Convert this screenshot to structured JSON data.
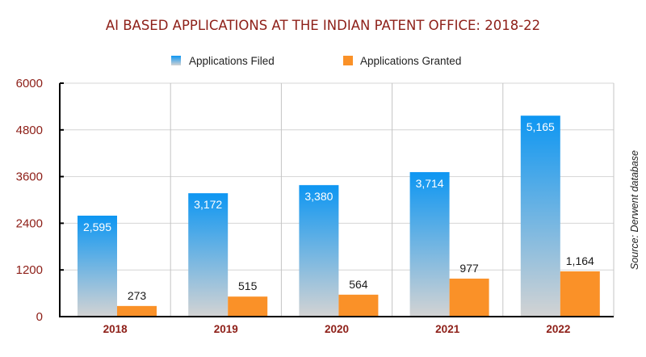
{
  "chart_data": {
    "type": "bar",
    "title": "AI BASED APPLICATIONS AT THE INDIAN PATENT OFFICE: 2018-22",
    "xlabel": "",
    "ylabel": "",
    "categories": [
      "2018",
      "2019",
      "2020",
      "2021",
      "2022"
    ],
    "series": [
      {
        "name": "Applications Filed",
        "values": [
          2595,
          3172,
          3380,
          3714,
          5165
        ],
        "labels": [
          "2,595",
          "3,172",
          "3,380",
          "3,714",
          "5,165"
        ],
        "color_top": "#0d96f2",
        "color_bottom": "#d3d3d3"
      },
      {
        "name": "Applications Granted",
        "values": [
          273,
          515,
          564,
          977,
          1164
        ],
        "labels": [
          "273",
          "515",
          "564",
          "977",
          "1,164"
        ],
        "color": "#fa9128"
      }
    ],
    "ylim": [
      0,
      6000
    ],
    "yticks": [
      "0",
      "1200",
      "2400",
      "3600",
      "4800",
      "6000"
    ],
    "ytick_values": [
      0,
      1200,
      2400,
      3600,
      4800,
      6000
    ],
    "grid": true,
    "legend_position": "top-center",
    "annotation": "Source: Derwent database",
    "colors": {
      "title": "#8e2019",
      "axis_text": "#8e2019"
    }
  }
}
